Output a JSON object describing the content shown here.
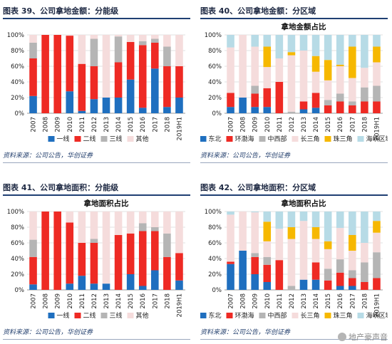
{
  "source_text": "资料来源：公司公告，华创证券",
  "watermark_text": "地产豪声音",
  "charts": [
    {
      "figure_title": "图表 39、公司拿地金额：分能级",
      "chart_data": {
        "type": "bar",
        "stacked": true,
        "title": "",
        "categories": [
          "2007",
          "2008",
          "2009",
          "2010",
          "2011",
          "2012",
          "2013",
          "2014",
          "2015",
          "2016",
          "2017",
          "2018",
          "2019H1"
        ],
        "yticks": [
          "0%",
          "20%",
          "40%",
          "60%",
          "80%",
          "100%"
        ],
        "ylim": [
          0,
          100
        ],
        "legend_position": "bottom",
        "series": [
          {
            "name": "一线",
            "color": "#1f6fbf",
            "values": [
              22,
              0,
              0,
              28,
              3,
              18,
              20,
              20,
              43,
              7,
              57,
              8,
              20
            ]
          },
          {
            "name": "二线",
            "color": "#ee2a24",
            "values": [
              48,
              100,
              100,
              71,
              60,
              42,
              0,
              45,
              48,
              80,
              33,
              52,
              40
            ]
          },
          {
            "name": "三线",
            "color": "#b5b5b5",
            "values": [
              20,
              0,
              0,
              0,
              0,
              35,
              0,
              33,
              0,
              5,
              5,
              25,
              0
            ]
          },
          {
            "name": "其他",
            "color": "#f5dcdc",
            "values": [
              10,
              0,
              0,
              1,
              37,
              5,
              80,
              2,
              9,
              8,
              5,
              15,
              40
            ]
          }
        ]
      }
    },
    {
      "figure_title": "图表 40、公司拿地金额：分区域",
      "chart_data": {
        "type": "bar",
        "stacked": true,
        "title": "拿地金额占比",
        "categories": [
          "2007",
          "2008",
          "2009",
          "2010",
          "2011",
          "2012",
          "2013",
          "2014",
          "2015",
          "2016",
          "2017",
          "2018",
          "2019H1"
        ],
        "yticks": [
          "0%",
          "20%",
          "40%",
          "60%",
          "80%",
          "100%"
        ],
        "ylim": [
          0,
          100
        ],
        "legend_position": "bottom",
        "series": [
          {
            "name": "东北",
            "color": "#1f6fbf",
            "values": [
              8,
              20,
              8,
              8,
              0,
              0,
              5,
              7,
              0,
              0,
              0,
              0,
              0
            ]
          },
          {
            "name": "环渤海",
            "color": "#ee2a24",
            "values": [
              18,
              0,
              17,
              24,
              40,
              0,
              10,
              19,
              10,
              15,
              10,
              15,
              15
            ]
          },
          {
            "name": "中西部",
            "color": "#b5b5b5",
            "values": [
              0,
              0,
              10,
              0,
              0,
              2,
              0,
              0,
              7,
              10,
              5,
              18,
              20
            ]
          },
          {
            "name": "长三角",
            "color": "#f5dcdc",
            "values": [
              58,
              80,
              50,
              27,
              30,
              72,
              65,
              27,
              25,
              35,
              30,
              25,
              30
            ]
          },
          {
            "name": "珠三角",
            "color": "#f6b800",
            "values": [
              0,
              0,
              0,
              26,
              0,
              4,
              0,
              20,
              26,
              2,
              40,
              0,
              20
            ]
          },
          {
            "name": "海峡区域",
            "color": "#b7dbe6",
            "values": [
              16,
              0,
              15,
              15,
              30,
              22,
              20,
              27,
              32,
              38,
              15,
              42,
              15
            ]
          }
        ]
      }
    },
    {
      "figure_title": "图表 41、公司拿地面积：分能级",
      "chart_data": {
        "type": "bar",
        "stacked": true,
        "title": "拿地面积占比",
        "categories": [
          "2007",
          "2008",
          "2009",
          "2010",
          "2011",
          "2012",
          "2013",
          "2014",
          "2015",
          "2016",
          "2017",
          "2018",
          "2019H1"
        ],
        "yticks": [
          "0%",
          "20%",
          "40%",
          "60%",
          "80%",
          "100%"
        ],
        "ylim": [
          0,
          100
        ],
        "legend_position": "bottom",
        "series": [
          {
            "name": "一线",
            "color": "#1f6fbf",
            "values": [
              7,
              0,
              0,
              8,
              18,
              8,
              8,
              0,
              20,
              5,
              25,
              0,
              12
            ]
          },
          {
            "name": "二线",
            "color": "#ee2a24",
            "values": [
              35,
              100,
              100,
              78,
              42,
              52,
              0,
              70,
              52,
              70,
              50,
              42,
              35
            ]
          },
          {
            "name": "三线",
            "color": "#b5b5b5",
            "values": [
              22,
              0,
              0,
              0,
              0,
              5,
              0,
              0,
              0,
              10,
              5,
              30,
              0
            ]
          },
          {
            "name": "其他",
            "color": "#f5dcdc",
            "values": [
              36,
              0,
              0,
              14,
              40,
              35,
              92,
              30,
              28,
              15,
              20,
              28,
              53
            ]
          }
        ]
      }
    },
    {
      "figure_title": "图表 42、公司拿地面积：分区域",
      "chart_data": {
        "type": "bar",
        "stacked": true,
        "title": "拿地面积占比",
        "categories": [
          "2007",
          "2008",
          "2009",
          "2010",
          "2011",
          "2012",
          "2013",
          "2014",
          "2015",
          "2016",
          "2017",
          "2018",
          "2019H1"
        ],
        "yticks": [
          "0%",
          "20%",
          "40%",
          "60%",
          "80%",
          "100%"
        ],
        "ylim": [
          0,
          100
        ],
        "legend_position": "bottom",
        "series": [
          {
            "name": "东北",
            "color": "#1f6fbf",
            "values": [
              33,
              50,
              20,
              10,
              0,
              0,
              13,
              13,
              0,
              5,
              5,
              0,
              0
            ]
          },
          {
            "name": "环渤海",
            "color": "#ee2a24",
            "values": [
              3,
              0,
              22,
              22,
              38,
              0,
              0,
              22,
              12,
              17,
              10,
              10,
              15
            ]
          },
          {
            "name": "中西部",
            "color": "#b5b5b5",
            "values": [
              0,
              0,
              5,
              10,
              0,
              5,
              0,
              0,
              15,
              17,
              10,
              25,
              33
            ]
          },
          {
            "name": "长三角",
            "color": "#f5dcdc",
            "values": [
              60,
              50,
              52,
              20,
              40,
              60,
              75,
              30,
              25,
              40,
              25,
              25,
              25
            ]
          },
          {
            "name": "珠三角",
            "color": "#f6b800",
            "values": [
              0,
              0,
              0,
              25,
              0,
              15,
              0,
              15,
              10,
              0,
              20,
              0,
              15
            ]
          },
          {
            "name": "海峡区域",
            "color": "#b7dbe6",
            "values": [
              4,
              0,
              1,
              13,
              22,
              20,
              12,
              20,
              38,
              21,
              30,
              40,
              12
            ]
          }
        ]
      }
    }
  ]
}
